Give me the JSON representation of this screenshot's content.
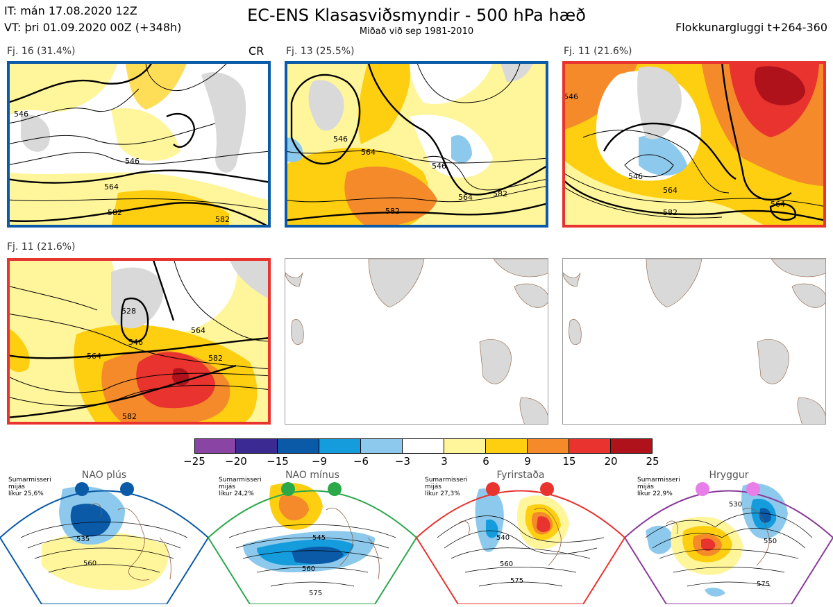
{
  "header": {
    "init_time": "IT: mán 17.08.2020 12Z",
    "valid_time": "VT: þri 01.09.2020 00Z  (+348h)",
    "title": "EC-ENS Klasasviðsmyndir - 500 hPa hæð",
    "subtitle": "Miðað við sep 1981-2010",
    "window": "Flokkunargluggi t+264-360"
  },
  "panels": [
    {
      "label": "Fj. 16 (31.4%)",
      "frame_color": "#0a5aa8",
      "tag": "CR",
      "contours": [
        "546",
        "564",
        "582",
        "546",
        "582"
      ]
    },
    {
      "label": "Fj. 13 (25.5%)",
      "frame_color": "#0a5aa8",
      "contours": [
        "546",
        "564",
        "546",
        "582",
        "564",
        "582"
      ]
    },
    {
      "label": "Fj. 11 (21.6%)",
      "frame_color": "#e8332e",
      "contours": [
        "546",
        "564",
        "582",
        "546",
        "564"
      ]
    },
    {
      "label": "Fj. 11 (21.6%)",
      "frame_color": "#e8332e",
      "contours": [
        "528",
        "546",
        "564",
        "564",
        "582",
        "582"
      ]
    },
    {
      "label": "",
      "frame_color": "none"
    },
    {
      "label": "",
      "frame_color": "none"
    }
  ],
  "colorbar": {
    "ticks": [
      "−25",
      "−20",
      "−15",
      "−9",
      "−6",
      "−3",
      "3",
      "6",
      "9",
      "15",
      "20",
      "25"
    ],
    "colors": [
      "#8a44a4",
      "#3b2a91",
      "#0a5aa8",
      "#149cdd",
      "#8cc9ec",
      "#ffffff",
      "#fff59b",
      "#fecf10",
      "#f58a2a",
      "#e8332e",
      "#b0121b"
    ]
  },
  "regimes": [
    {
      "name": "NAO plús",
      "meta": [
        "Sumarmisseri",
        "mijás",
        "líkur 25,6%"
      ],
      "dot_color": "#0a5aa8",
      "edge_color": "#0a5aa8",
      "contours": [
        "535",
        "560"
      ]
    },
    {
      "name": "NAO mínus",
      "meta": [
        "Sumarmisseri",
        "mijás",
        "líkur 24,2%"
      ],
      "dot_color": "#2aa84a",
      "edge_color": "#2aa84a",
      "contours": [
        "545",
        "560",
        "575"
      ]
    },
    {
      "name": "Fyrirstaða",
      "meta": [
        "Sumarmisseri",
        "mijás",
        "líkur 27,3%"
      ],
      "dot_color": "#e8332e",
      "edge_color": "#e8332e",
      "contours": [
        "540",
        "560",
        "575"
      ]
    },
    {
      "name": "Hryggur",
      "meta": [
        "Sumarmisseri",
        "mijás",
        "líkur 22,9%"
      ],
      "dot_color": "#e87ee8",
      "edge_color": "#8a3a9a",
      "contours": [
        "530",
        "550",
        "575"
      ]
    }
  ]
}
